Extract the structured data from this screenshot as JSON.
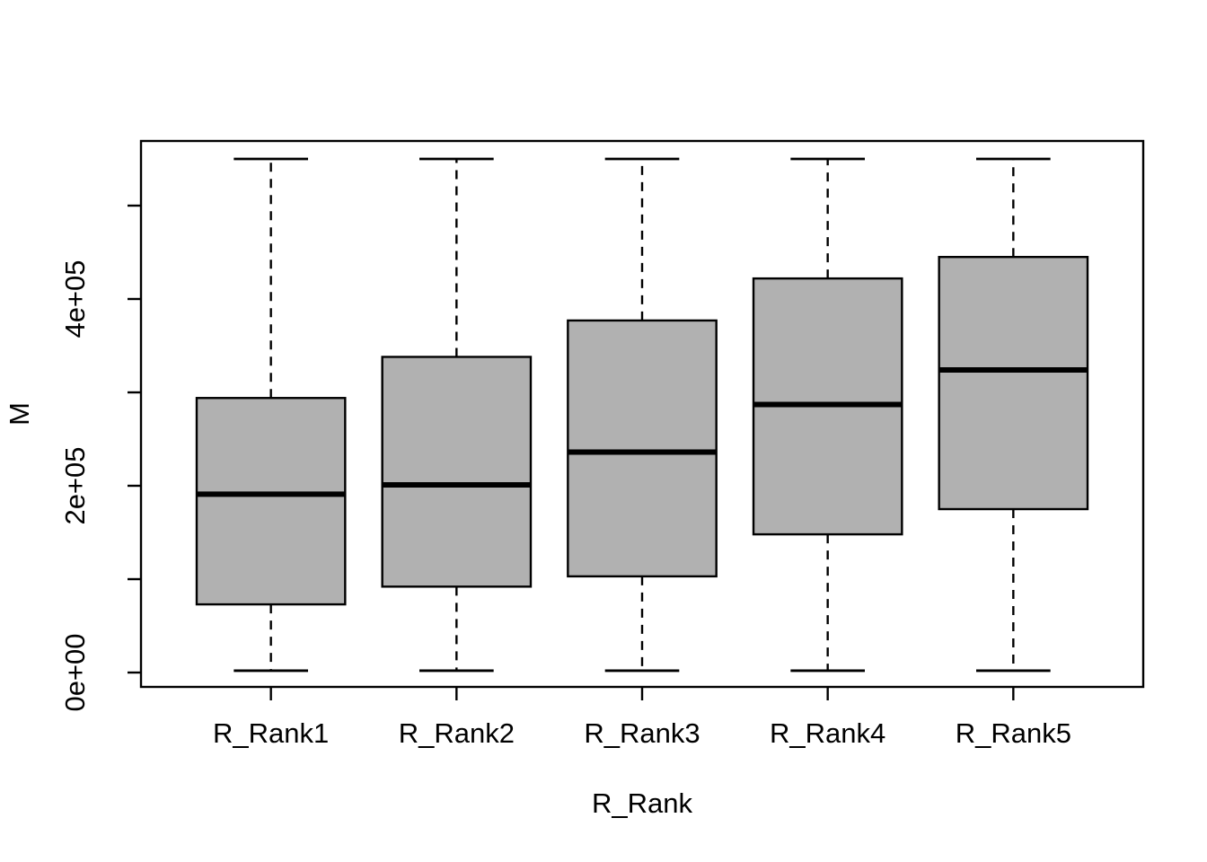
{
  "figure": {
    "background": "#ffffff",
    "foreground": "#000000"
  },
  "chart_data": {
    "type": "boxplot",
    "title": "",
    "xlabel": "R_Rank",
    "ylabel": "M",
    "categories": [
      "R_Rank1",
      "R_Rank2",
      "R_Rank3",
      "R_Rank4",
      "R_Rank5"
    ],
    "series": [
      {
        "name": "R_Rank1",
        "min": 2000,
        "q1": 73000,
        "median": 191000,
        "q3": 294000,
        "max": 550000
      },
      {
        "name": "R_Rank2",
        "min": 2000,
        "q1": 92000,
        "median": 201000,
        "q3": 338000,
        "max": 550000
      },
      {
        "name": "R_Rank3",
        "min": 2000,
        "q1": 103000,
        "median": 236000,
        "q3": 377000,
        "max": 550000
      },
      {
        "name": "R_Rank4",
        "min": 2000,
        "q1": 148000,
        "median": 287000,
        "q3": 422000,
        "max": 550000
      },
      {
        "name": "R_Rank5",
        "min": 2000,
        "q1": 175000,
        "median": 324000,
        "q3": 445000,
        "max": 550000
      }
    ],
    "y_axis": {
      "tick_values": [
        0,
        100000,
        200000,
        300000,
        400000,
        500000
      ],
      "labeled_ticks": [
        {
          "value": 0,
          "label": "0e+00"
        },
        {
          "value": 200000,
          "label": "2e+05"
        },
        {
          "value": 400000,
          "label": "4e+05"
        }
      ],
      "range": [
        -20000,
        572000
      ],
      "grid": false
    },
    "x_axis": {
      "tick_labels": [
        "R_Rank1",
        "R_Rank2",
        "R_Rank3",
        "R_Rank4",
        "R_Rank5"
      ],
      "grid": false
    },
    "legend": null,
    "style": {
      "box_fill": "#b1b1b1",
      "box_border": "#000000",
      "median_color": "#000000",
      "whisker_color": "#000000",
      "whisker_line_style": "dashed"
    }
  }
}
